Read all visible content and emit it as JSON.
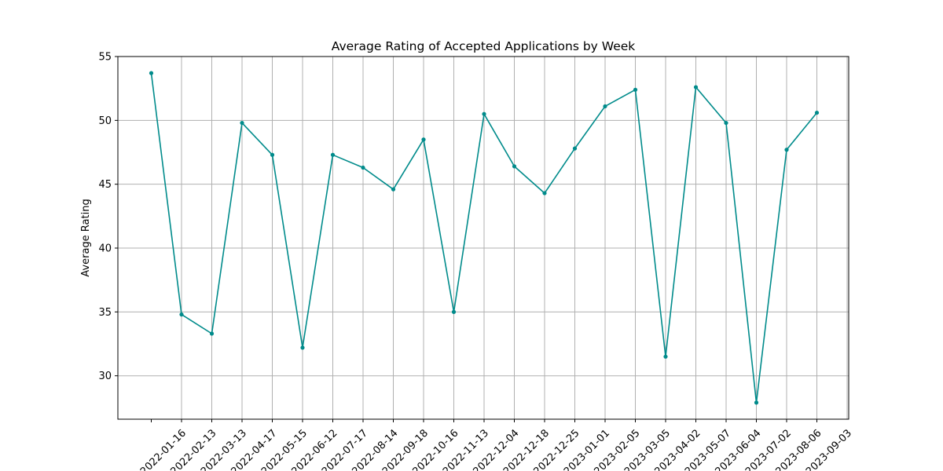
{
  "chart_data": {
    "type": "line",
    "title": "Average Rating of Accepted Applications by Week",
    "xlabel": "",
    "ylabel": "Average Rating",
    "x_tick_labels": [
      "2022-01-16",
      "2022-02-13",
      "2022-03-13",
      "2022-04-17",
      "2022-05-15",
      "2022-06-12",
      "2022-07-17",
      "2022-08-14",
      "2022-09-18",
      "2022-10-16",
      "2022-11-13",
      "2022-12-04",
      "2022-12-18",
      "2022-12-25",
      "2023-01-01",
      "2023-02-05",
      "2023-03-05",
      "2023-04-02",
      "2023-05-07",
      "2023-06-04",
      "2023-07-02",
      "2023-08-06",
      "2023-09-03"
    ],
    "series": [
      {
        "color": "#008b8b",
        "values": [
          53.7,
          34.8,
          33.3,
          49.8,
          47.3,
          32.2,
          47.3,
          46.3,
          44.6,
          48.5,
          35.0,
          50.5,
          46.4,
          44.3,
          47.8,
          51.1,
          52.4,
          31.5,
          52.6,
          49.8,
          27.9,
          47.7,
          50.6
        ]
      }
    ],
    "ylim": [
      26.6,
      55.0
    ],
    "yticks": [
      30,
      35,
      40,
      45,
      50,
      55
    ],
    "grid": true,
    "legend": false
  }
}
